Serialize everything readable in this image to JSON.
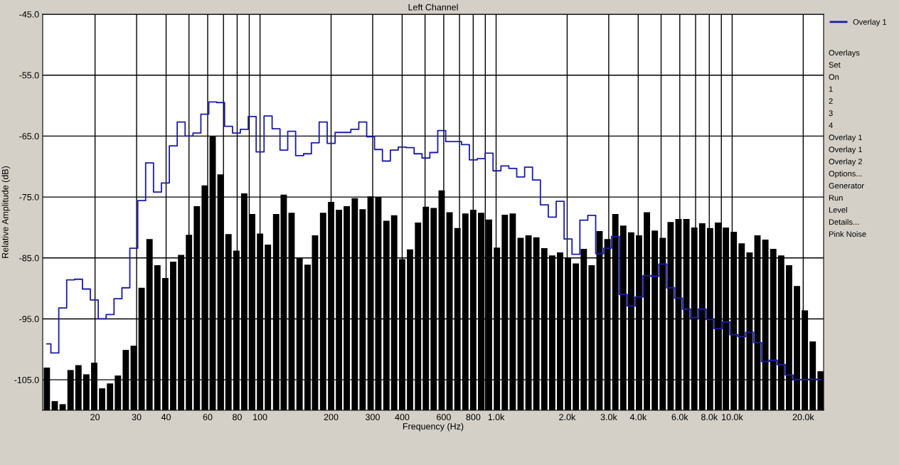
{
  "chart_data": {
    "type": "bar",
    "title": "Left Channel",
    "xlabel": "Frequency (Hz)",
    "ylabel": "Relative Amplitude (dB)",
    "log": "x",
    "grid": true,
    "legend": "right",
    "x": [
      12.5,
      13.5,
      14.58,
      15.75,
      17.01,
      18.37,
      19.84,
      21.43,
      23.15,
      25,
      27.0,
      29.16,
      31.5,
      34.02,
      36.74,
      39.69,
      42.86,
      46.29,
      50,
      54.0,
      58.3,
      63.0,
      68.0,
      73.5,
      79.4,
      85.7,
      92.6,
      100,
      108,
      117,
      126,
      136,
      147,
      159,
      171,
      185,
      200,
      216,
      233,
      252,
      272,
      294,
      317,
      343,
      370,
      400,
      432,
      467,
      504,
      544,
      588,
      635,
      686,
      741,
      800,
      864,
      933,
      1008,
      1089,
      1176,
      1270,
      1372,
      1481,
      1600,
      1728,
      1866,
      2016,
      2177,
      2352,
      2540,
      2743,
      2963,
      3200,
      3456,
      3733,
      4032,
      4354,
      4703,
      5080,
      5486,
      5925,
      6400,
      6913,
      7466,
      8063,
      8709,
      9406,
      10159,
      10972,
      11851,
      12800,
      13825,
      14931,
      16127,
      17418,
      18812,
      20318,
      21944,
      23701
    ],
    "series": [
      {
        "color": "#000000",
        "values": [
          7.0,
          1.5,
          1.0,
          6.6,
          7.4,
          5.9,
          7.8,
          3.6,
          4.4,
          5.7,
          9.9,
          10.6,
          20.1,
          28.1,
          23.8,
          21.7,
          24.4,
          25.5,
          28.8,
          33.5,
          36.9,
          45.0,
          38.7,
          28.9,
          26.2,
          35.6,
          32.2,
          29.0,
          27.2,
          32.2,
          35.4,
          32.4,
          25.0,
          23.9,
          28.7,
          32.4,
          34.2,
          32.9,
          33.5,
          34.8,
          33.0,
          35.1,
          35.0,
          31.1,
          32.0,
          24.8,
          26.4,
          30.8,
          33.4,
          33.2,
          36.1,
          32.5,
          29.9,
          32.3,
          32.9,
          32.4,
          31.3,
          26.7,
          32.1,
          32.3,
          28.3,
          28.7,
          28.4,
          26.6,
          25.4,
          25.9,
          25.0,
          24.1,
          26.5,
          23.8,
          29.4,
          28.1,
          32.2,
          30.3,
          29.2,
          28.7,
          32.5,
          29.5,
          28.3,
          30.9,
          31.4,
          31.4,
          30.0,
          30.7,
          29.9,
          30.8,
          30.0,
          29.3,
          27.4,
          25.9,
          28.7,
          28.0,
          26.5,
          25.4,
          23.8,
          20.4,
          16.4,
          11.3,
          6.4
        ],
        "base": [
          -110,
          -110,
          -110,
          -110,
          -110,
          -110,
          -110,
          -110,
          -110,
          -110,
          -110,
          -110,
          -110,
          -110,
          -110,
          -110,
          -110,
          -110,
          -110,
          -110,
          -110,
          -110,
          -110,
          -110,
          -110,
          -110,
          -110,
          -110,
          -110,
          -110,
          -110,
          -110,
          -110,
          -110,
          -110,
          -110,
          -110,
          -110,
          -110,
          -110,
          -110,
          -110,
          -110,
          -110,
          -110,
          -110,
          -110,
          -110,
          -110,
          -110,
          -110,
          -110,
          -110,
          -110,
          -110,
          -110,
          -110,
          -110,
          -110,
          -110,
          -110,
          -110,
          -110,
          -110,
          -110,
          -110,
          -110,
          -110,
          -110,
          -110,
          -110,
          -110,
          -110,
          -110,
          -110,
          -110,
          -110,
          -110,
          -110,
          -110,
          -110,
          -110,
          -110,
          -110,
          -110,
          -110,
          -110,
          -110,
          -110,
          -110,
          -110,
          -110,
          -110,
          -110,
          -110,
          -110,
          -110,
          -110,
          -110
        ]
      },
      {
        "type": "step",
        "name": "Overlay 1",
        "color": "#1c1ca8",
        "values": [
          -99.1,
          -100.6,
          -93.2,
          -88.6,
          -88.5,
          -90.1,
          -91.9,
          -95.0,
          -94.3,
          -91.7,
          -89.9,
          -83.4,
          -75.6,
          -69.4,
          -74.2,
          -72.7,
          -66.6,
          -62.7,
          -65.0,
          -64.5,
          -61.4,
          -59.4,
          -59.5,
          -63.4,
          -64.5,
          -63.9,
          -61.8,
          -67.6,
          -61.7,
          -63.8,
          -67.3,
          -64.2,
          -68.2,
          -67.9,
          -66.1,
          -62.7,
          -66.2,
          -64.4,
          -64.4,
          -63.9,
          -62.7,
          -65.1,
          -67.2,
          -69.1,
          -67.3,
          -66.8,
          -66.9,
          -67.9,
          -68.6,
          -67.7,
          -64.1,
          -65.9,
          -65.9,
          -66.4,
          -68.9,
          -68.7,
          -67.8,
          -70.7,
          -69.9,
          -70.3,
          -71.7,
          -70.1,
          -72.2,
          -76.3,
          -78.3,
          -75.7,
          -81.9,
          -84.4,
          -78.8,
          -78.0,
          -84.3,
          -83.4,
          -81.5,
          -91.0,
          -92.9,
          -91.4,
          -87.9,
          -88.0,
          -86.0,
          -89.9,
          -91.6,
          -93.4,
          -94.8,
          -93.4,
          -95.1,
          -96.6,
          -95.5,
          -97.6,
          -97.9,
          -97.2,
          -98.9,
          -102.0,
          -101.8,
          -102.5,
          -104.2,
          -105.0,
          -105.0,
          -104.9,
          -105.0
        ]
      }
    ],
    "xlim": [
      12,
      24400
    ],
    "ylim": [
      -110,
      -45
    ],
    "xticks": [
      20,
      30,
      40,
      {
        "value": 50,
        "label": null
      },
      60,
      {
        "value": 70,
        "label": null
      },
      80,
      {
        "value": 90,
        "label": null
      },
      100,
      200,
      300,
      400,
      {
        "value": 500,
        "label": null
      },
      600,
      {
        "value": 700,
        "label": null
      },
      800,
      {
        "value": 900,
        "label": null
      },
      {
        "value": 1000,
        "label": "1.0k"
      },
      {
        "value": 2000,
        "label": "2.0k"
      },
      {
        "value": 3000,
        "label": "3.0k"
      },
      {
        "value": 4000,
        "label": "4.0k"
      },
      {
        "value": 5000,
        "label": null
      },
      {
        "value": 6000,
        "label": "6.0k"
      },
      {
        "value": 7000,
        "label": null
      },
      {
        "value": 8000,
        "label": "8.0k"
      },
      {
        "value": 9000,
        "label": null
      },
      {
        "value": 10000,
        "label": "10.0k"
      },
      {
        "value": 20000,
        "label": "20.0k"
      }
    ],
    "yticks": [
      {
        "value": -45,
        "label": "-45.0"
      },
      {
        "value": -55,
        "label": "-55.0"
      },
      {
        "value": -65,
        "label": "-65.0"
      },
      {
        "value": -75,
        "label": "-75.0"
      },
      {
        "value": -85,
        "label": "-85.0"
      },
      {
        "value": -95,
        "label": "-95.0"
      },
      {
        "value": -105,
        "label": "-105.0"
      }
    ],
    "annotations": [
      "Overlays",
      "Set",
      "On",
      "1",
      "2",
      "3",
      "4",
      "Overlay 1",
      "Overlay 1",
      "Overlay 2",
      "Options...",
      "Generator",
      "Run",
      "Level",
      "Details...",
      "Pink Noise"
    ]
  }
}
